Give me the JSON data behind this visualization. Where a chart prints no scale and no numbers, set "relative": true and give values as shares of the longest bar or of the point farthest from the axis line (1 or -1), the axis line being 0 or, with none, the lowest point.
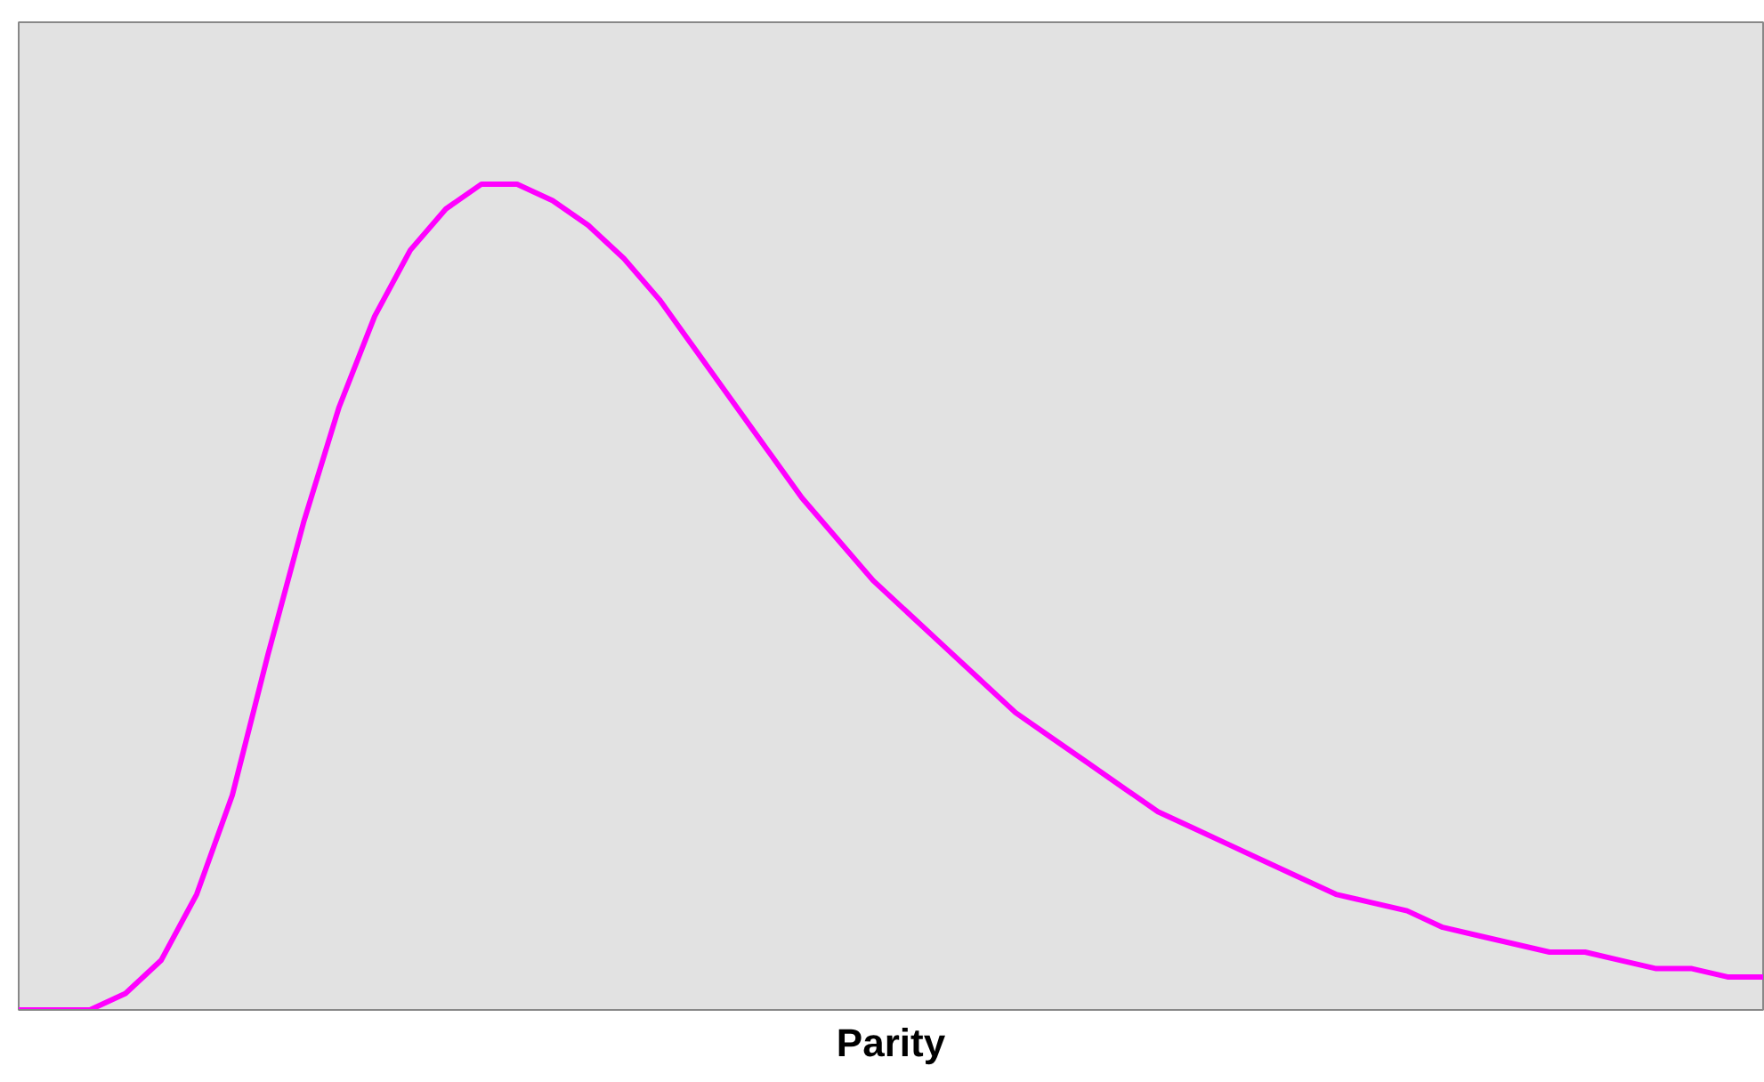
{
  "chart_data": {
    "type": "line",
    "xlabel": "Parity",
    "relative": true,
    "color": "#ff00ff",
    "categories": [
      null,
      null,
      null,
      null,
      null,
      null,
      null,
      null,
      null,
      null,
      null,
      null,
      null,
      null,
      null,
      null,
      null,
      null,
      null,
      null,
      null,
      null,
      null,
      null,
      null,
      null,
      null,
      null,
      null,
      null,
      null,
      null,
      null,
      null,
      null,
      null,
      null,
      null,
      null,
      null,
      null,
      null,
      null,
      null,
      null,
      null,
      null,
      null,
      null,
      null
    ],
    "values": [
      0,
      0,
      0,
      0.02,
      0.06,
      0.14,
      0.26,
      0.43,
      0.59,
      0.73,
      0.84,
      0.92,
      0.97,
      1,
      1,
      0.98,
      0.95,
      0.91,
      0.86,
      0.8,
      0.74,
      0.68,
      0.62,
      0.57,
      0.52,
      0.48,
      0.44,
      0.4,
      0.36,
      0.33,
      0.3,
      0.27,
      0.24,
      0.22,
      0.2,
      0.18,
      0.16,
      0.14,
      0.13,
      0.12,
      0.1,
      0.09,
      0.08,
      0.07,
      0.07,
      0.06,
      0.05,
      0.05,
      0.04,
      0.04
    ]
  }
}
